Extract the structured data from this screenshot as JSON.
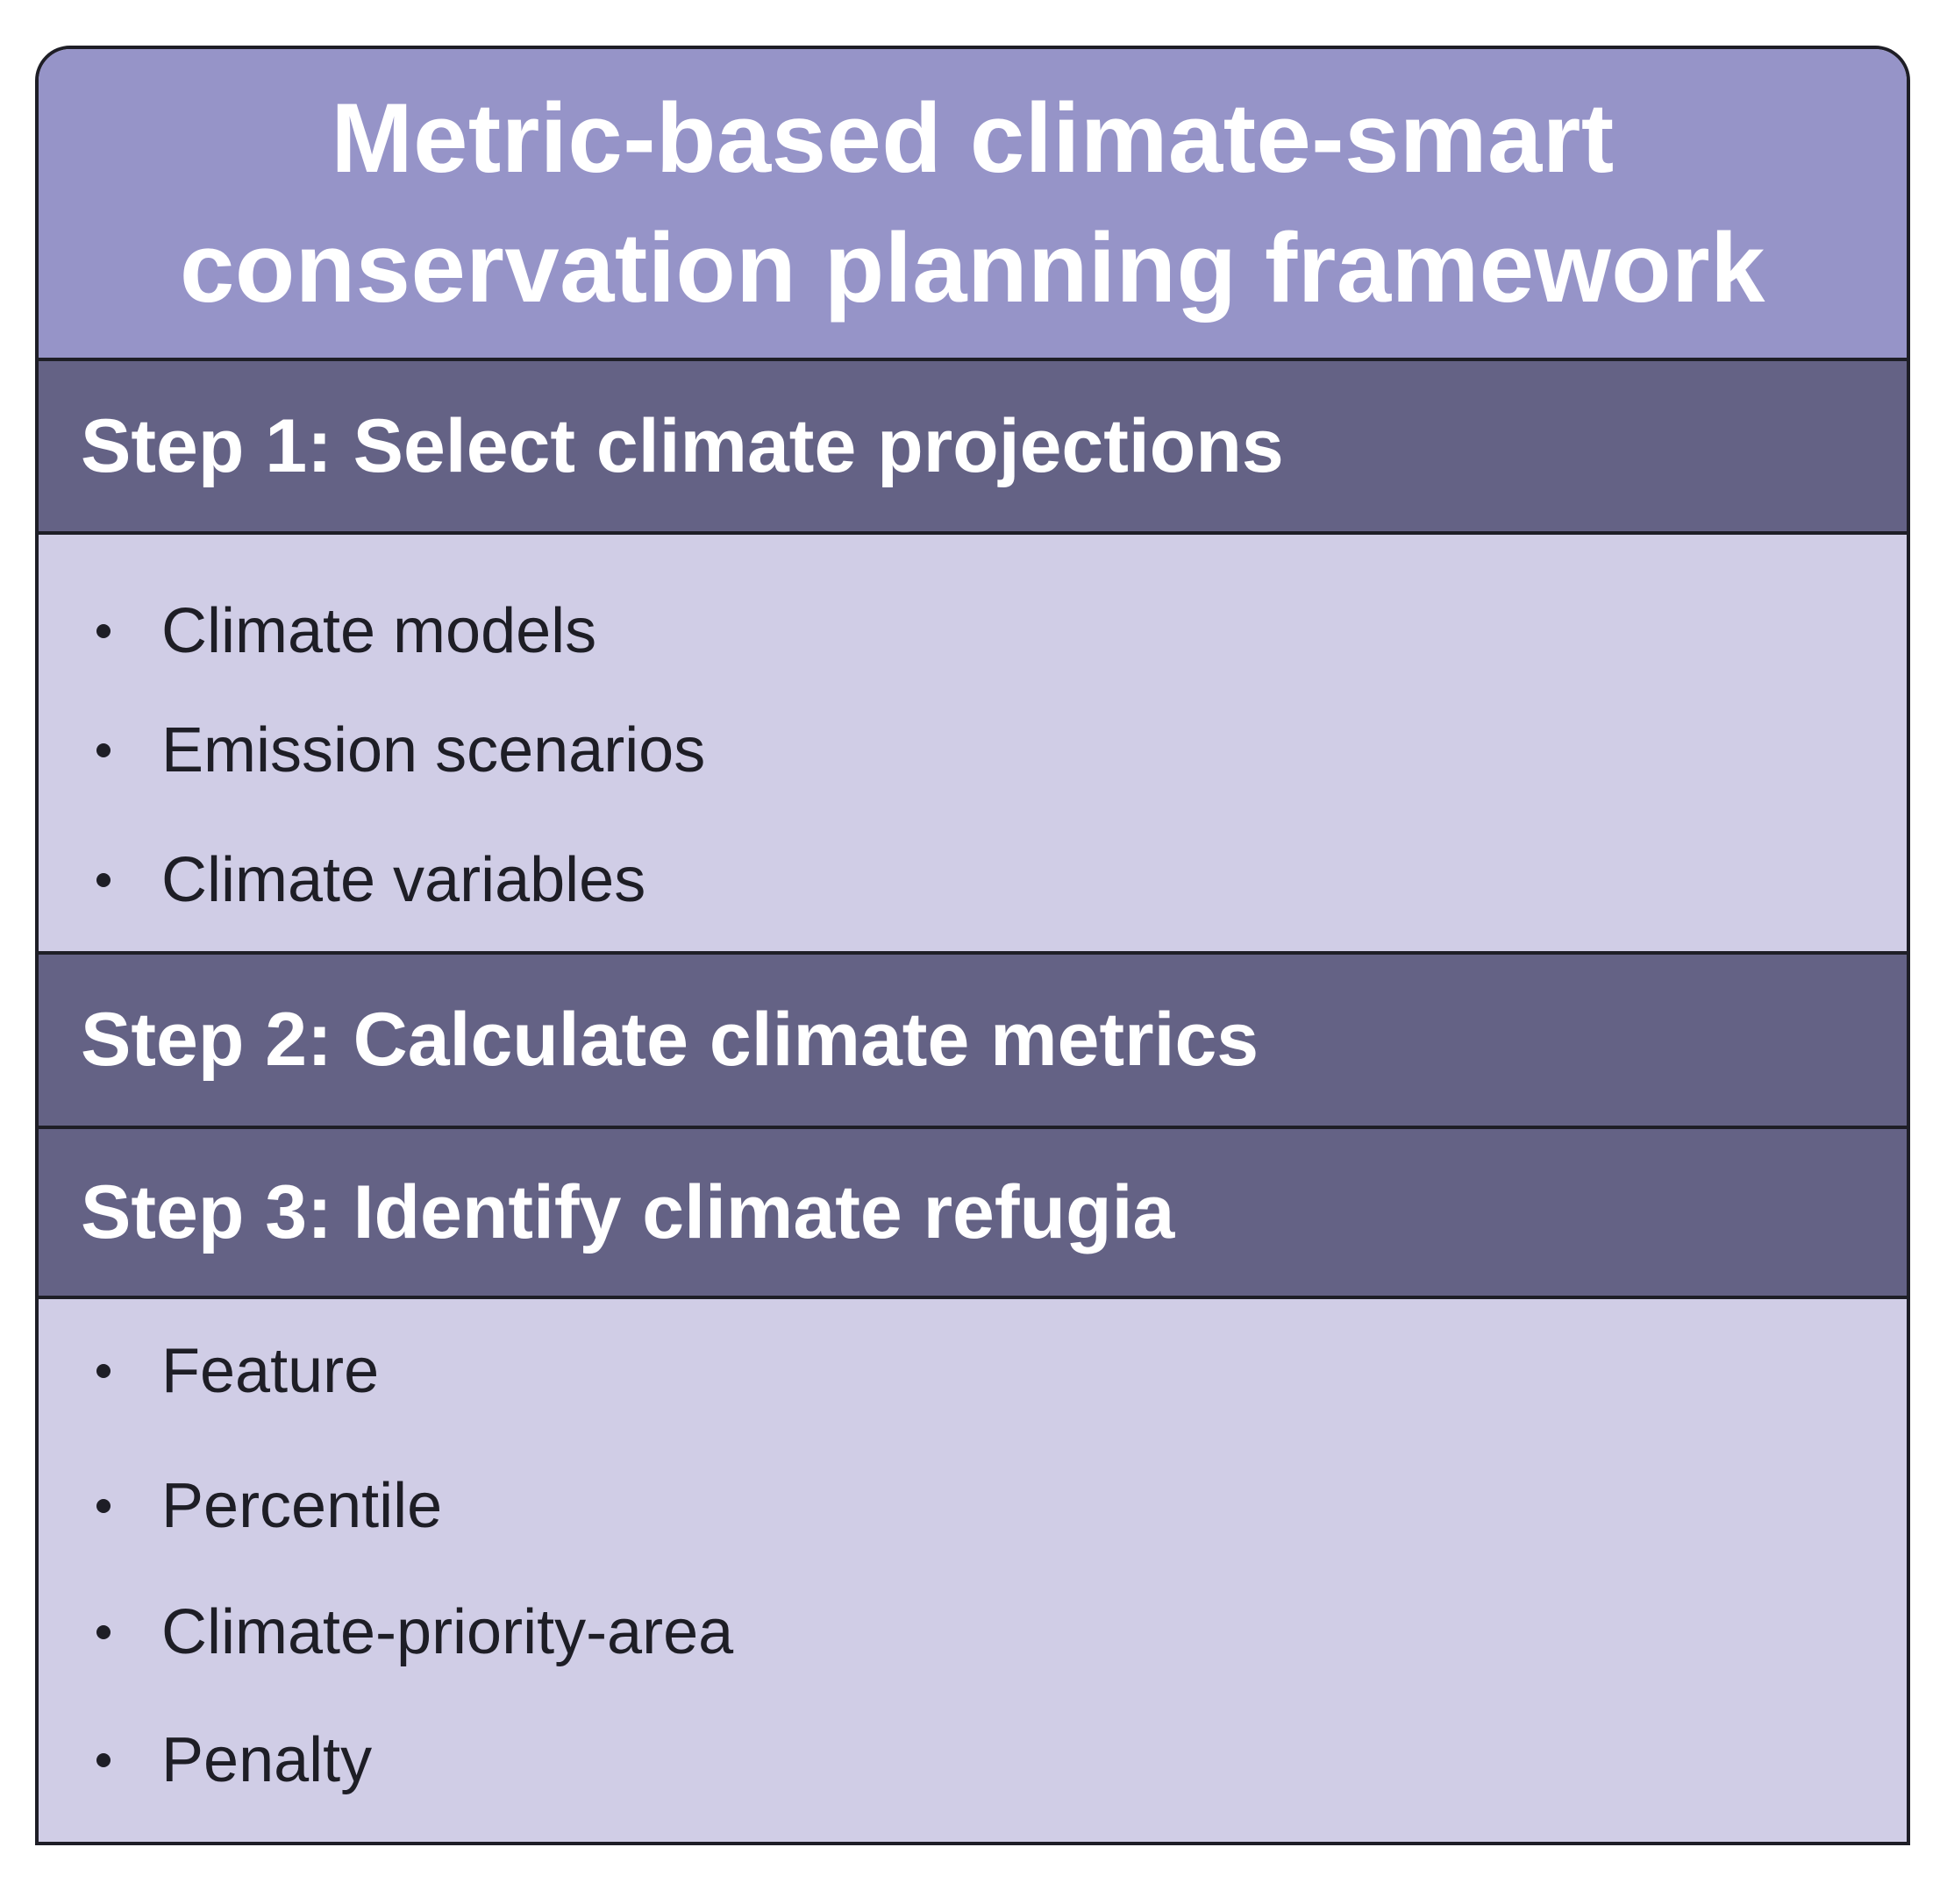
{
  "title": {
    "line1": "Metric-based climate-smart",
    "line2": "conservation planning framework"
  },
  "steps": [
    {
      "label": "Step 1: Select climate projections",
      "items": [
        "Climate models",
        "Emission scenarios",
        "Climate variables"
      ]
    },
    {
      "label": "Step 2: Calculate climate metrics",
      "items": []
    },
    {
      "label": "Step 3: Identify climate refugia",
      "items": [
        "Feature",
        "Percentile",
        "Climate-priority-area",
        "Penalty"
      ]
    }
  ],
  "colors": {
    "title_bg": "#9694c8",
    "step_header_bg": "#646285",
    "step_body_bg": "#d0cde6",
    "border": "#1e1e26",
    "title_text": "#ffffff",
    "body_text": "#1e1e26"
  }
}
